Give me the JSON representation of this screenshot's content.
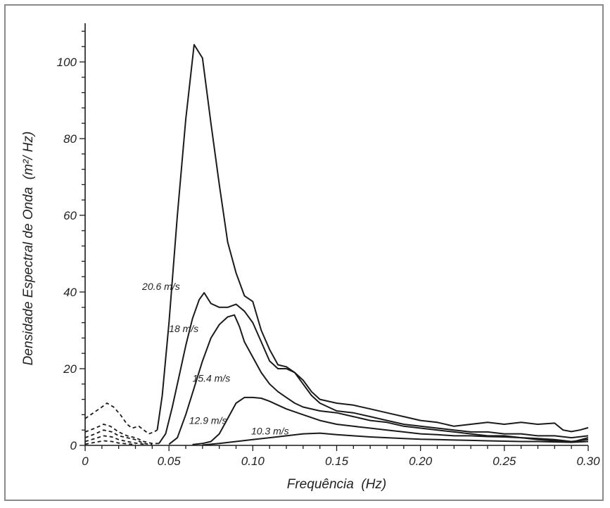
{
  "chart_data": {
    "type": "line",
    "title": "",
    "xlabel": "Frequência  (Hz)",
    "ylabel": "Densidade Espectral de Onda  (m²/ Hz)",
    "xlim": [
      0,
      0.3
    ],
    "ylim": [
      0,
      110
    ],
    "x_ticks": [
      {
        "value": 0,
        "label": "0"
      },
      {
        "value": 0.05,
        "label": "0.05"
      },
      {
        "value": 0.1,
        "label": "0.10"
      },
      {
        "value": 0.15,
        "label": "0.15"
      },
      {
        "value": 0.2,
        "label": "0.20"
      },
      {
        "value": 0.25,
        "label": "0.25"
      },
      {
        "value": 0.3,
        "label": "0.30"
      }
    ],
    "y_ticks": [
      {
        "value": 0,
        "label": "0"
      },
      {
        "value": 20,
        "label": "20"
      },
      {
        "value": 40,
        "label": "40"
      },
      {
        "value": 60,
        "label": "60"
      },
      {
        "value": 80,
        "label": "80"
      },
      {
        "value": 100,
        "label": "100"
      }
    ],
    "y_minor_step": 4,
    "grid": false,
    "legend": "none",
    "series": [
      {
        "name": "20.6 m/s",
        "label_at": [
          0.034,
          41.5
        ],
        "points": [
          [
            0.043,
            4
          ],
          [
            0.046,
            13
          ],
          [
            0.05,
            32
          ],
          [
            0.055,
            60
          ],
          [
            0.06,
            85
          ],
          [
            0.065,
            104.5
          ],
          [
            0.07,
            101
          ],
          [
            0.075,
            84
          ],
          [
            0.08,
            68
          ],
          [
            0.085,
            53
          ],
          [
            0.09,
            45
          ],
          [
            0.095,
            39
          ],
          [
            0.1,
            37.5
          ],
          [
            0.105,
            30
          ],
          [
            0.11,
            25
          ],
          [
            0.115,
            21
          ],
          [
            0.12,
            20.5
          ],
          [
            0.125,
            19
          ],
          [
            0.13,
            17
          ],
          [
            0.135,
            14
          ],
          [
            0.14,
            12
          ],
          [
            0.15,
            11
          ],
          [
            0.16,
            10.5
          ],
          [
            0.17,
            9.5
          ],
          [
            0.18,
            8.5
          ],
          [
            0.19,
            7.5
          ],
          [
            0.2,
            6.5
          ],
          [
            0.21,
            6
          ],
          [
            0.22,
            5
          ],
          [
            0.23,
            5.5
          ],
          [
            0.24,
            6
          ],
          [
            0.25,
            5.5
          ],
          [
            0.26,
            6
          ],
          [
            0.27,
            5.5
          ],
          [
            0.28,
            5.8
          ],
          [
            0.285,
            4
          ],
          [
            0.29,
            3.6
          ],
          [
            0.295,
            4
          ],
          [
            0.3,
            4.6
          ]
        ]
      },
      {
        "name": "18 m/s",
        "label_at": [
          0.05,
          30.5
        ],
        "points": [
          [
            0.044,
            0.5
          ],
          [
            0.048,
            3
          ],
          [
            0.052,
            10
          ],
          [
            0.056,
            18
          ],
          [
            0.06,
            26
          ],
          [
            0.064,
            33
          ],
          [
            0.068,
            38
          ],
          [
            0.071,
            39.8
          ],
          [
            0.075,
            37
          ],
          [
            0.08,
            36
          ],
          [
            0.085,
            36
          ],
          [
            0.09,
            36.8
          ],
          [
            0.095,
            35
          ],
          [
            0.1,
            32
          ],
          [
            0.105,
            27
          ],
          [
            0.11,
            22
          ],
          [
            0.115,
            20
          ],
          [
            0.12,
            20
          ],
          [
            0.125,
            19
          ],
          [
            0.13,
            16
          ],
          [
            0.135,
            13
          ],
          [
            0.14,
            11
          ],
          [
            0.145,
            10
          ],
          [
            0.15,
            9
          ],
          [
            0.16,
            8.5
          ],
          [
            0.17,
            7.5
          ],
          [
            0.18,
            6.5
          ],
          [
            0.19,
            5.5
          ],
          [
            0.2,
            5
          ],
          [
            0.21,
            4.5
          ],
          [
            0.22,
            4
          ],
          [
            0.23,
            3.5
          ],
          [
            0.24,
            3.5
          ],
          [
            0.25,
            3
          ],
          [
            0.26,
            3
          ],
          [
            0.27,
            2.5
          ],
          [
            0.28,
            2.5
          ],
          [
            0.29,
            2
          ],
          [
            0.3,
            2.5
          ]
        ]
      },
      {
        "name": "15.4 m/s",
        "label_at": [
          0.064,
          17.5
        ],
        "points": [
          [
            0.05,
            0.3
          ],
          [
            0.055,
            2
          ],
          [
            0.06,
            8
          ],
          [
            0.065,
            15
          ],
          [
            0.07,
            22
          ],
          [
            0.075,
            28
          ],
          [
            0.08,
            31.5
          ],
          [
            0.085,
            33.5
          ],
          [
            0.089,
            34
          ],
          [
            0.092,
            31
          ],
          [
            0.095,
            27
          ],
          [
            0.1,
            23
          ],
          [
            0.105,
            19
          ],
          [
            0.11,
            16
          ],
          [
            0.115,
            14
          ],
          [
            0.12,
            12.5
          ],
          [
            0.125,
            11
          ],
          [
            0.13,
            10
          ],
          [
            0.14,
            9
          ],
          [
            0.15,
            8.5
          ],
          [
            0.16,
            7.5
          ],
          [
            0.17,
            6.5
          ],
          [
            0.18,
            6
          ],
          [
            0.19,
            5
          ],
          [
            0.2,
            4.5
          ],
          [
            0.21,
            4
          ],
          [
            0.22,
            3.5
          ],
          [
            0.23,
            3
          ],
          [
            0.24,
            2.5
          ],
          [
            0.25,
            2.5
          ],
          [
            0.26,
            2
          ],
          [
            0.27,
            1.5
          ],
          [
            0.28,
            1.2
          ],
          [
            0.29,
            0.8
          ],
          [
            0.3,
            2
          ]
        ]
      },
      {
        "name": "12.9 m/s",
        "label_at": [
          0.062,
          6.5
        ],
        "points": [
          [
            0.064,
            0.2
          ],
          [
            0.07,
            0.5
          ],
          [
            0.075,
            1
          ],
          [
            0.08,
            3
          ],
          [
            0.085,
            7
          ],
          [
            0.09,
            11
          ],
          [
            0.095,
            12.5
          ],
          [
            0.1,
            12.5
          ],
          [
            0.105,
            12.3
          ],
          [
            0.11,
            11.5
          ],
          [
            0.115,
            10.5
          ],
          [
            0.12,
            9.5
          ],
          [
            0.13,
            8
          ],
          [
            0.14,
            6.5
          ],
          [
            0.15,
            5.5
          ],
          [
            0.16,
            5
          ],
          [
            0.17,
            4.5
          ],
          [
            0.18,
            4
          ],
          [
            0.19,
            3.5
          ],
          [
            0.2,
            3
          ],
          [
            0.21,
            2.8
          ],
          [
            0.22,
            2.5
          ],
          [
            0.23,
            2.5
          ],
          [
            0.24,
            2.3
          ],
          [
            0.25,
            2.2
          ],
          [
            0.26,
            2
          ],
          [
            0.27,
            1.8
          ],
          [
            0.28,
            1.5
          ],
          [
            0.29,
            1
          ],
          [
            0.3,
            1.5
          ]
        ]
      },
      {
        "name": "10.3 m/s",
        "label_at": [
          0.099,
          3.8
        ],
        "points": [
          [
            0.07,
            0.1
          ],
          [
            0.08,
            0.5
          ],
          [
            0.09,
            1
          ],
          [
            0.1,
            1.5
          ],
          [
            0.11,
            2
          ],
          [
            0.12,
            2.5
          ],
          [
            0.13,
            3
          ],
          [
            0.14,
            3.2
          ],
          [
            0.15,
            2.8
          ],
          [
            0.16,
            2.5
          ],
          [
            0.17,
            2.2
          ],
          [
            0.18,
            2
          ],
          [
            0.19,
            1.8
          ],
          [
            0.2,
            1.6
          ],
          [
            0.21,
            1.5
          ],
          [
            0.22,
            1.4
          ],
          [
            0.23,
            1.3
          ],
          [
            0.24,
            1.2
          ],
          [
            0.25,
            1.1
          ],
          [
            0.26,
            1
          ],
          [
            0.27,
            1
          ],
          [
            0.28,
            0.9
          ],
          [
            0.29,
            0.8
          ],
          [
            0.3,
            1
          ]
        ]
      }
    ],
    "low_frequency_dashed": [
      {
        "points": [
          [
            0,
            7
          ],
          [
            0.005,
            8.5
          ],
          [
            0.01,
            10
          ],
          [
            0.013,
            11
          ],
          [
            0.017,
            10
          ],
          [
            0.021,
            8
          ],
          [
            0.025,
            5.5
          ],
          [
            0.028,
            4.5
          ],
          [
            0.032,
            5
          ],
          [
            0.035,
            4
          ],
          [
            0.038,
            3
          ],
          [
            0.041,
            3.5
          ],
          [
            0.043,
            4
          ]
        ]
      },
      {
        "points": [
          [
            0,
            3.5
          ],
          [
            0.006,
            4.5
          ],
          [
            0.011,
            5.5
          ],
          [
            0.015,
            5
          ],
          [
            0.02,
            3.5
          ],
          [
            0.025,
            2.5
          ],
          [
            0.03,
            2
          ],
          [
            0.035,
            1
          ],
          [
            0.04,
            0.5
          ],
          [
            0.044,
            0.5
          ]
        ]
      },
      {
        "points": [
          [
            0,
            2
          ],
          [
            0.006,
            3
          ],
          [
            0.011,
            4
          ],
          [
            0.016,
            3.5
          ],
          [
            0.02,
            2.5
          ],
          [
            0.025,
            2
          ],
          [
            0.03,
            1.5
          ],
          [
            0.035,
            0.5
          ],
          [
            0.04,
            0.2
          ]
        ]
      },
      {
        "points": [
          [
            0,
            1
          ],
          [
            0.006,
            1.8
          ],
          [
            0.011,
            2.5
          ],
          [
            0.016,
            2.2
          ],
          [
            0.02,
            1.5
          ],
          [
            0.025,
            1
          ],
          [
            0.03,
            0.6
          ],
          [
            0.035,
            0.3
          ]
        ]
      },
      {
        "points": [
          [
            0,
            0.3
          ],
          [
            0.006,
            0.8
          ],
          [
            0.011,
            1.2
          ],
          [
            0.016,
            1
          ],
          [
            0.02,
            0.6
          ],
          [
            0.025,
            0.4
          ],
          [
            0.03,
            0.2
          ]
        ]
      }
    ]
  }
}
